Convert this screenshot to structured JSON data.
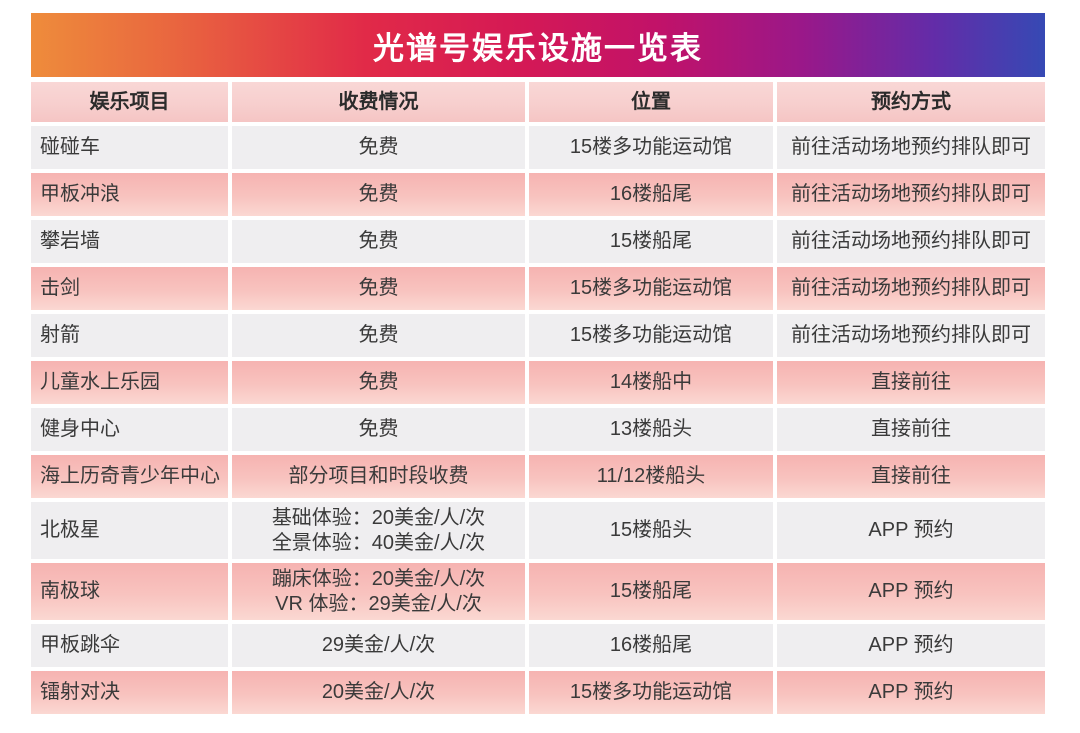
{
  "title": {
    "text": "光谱号娱乐设施一览表",
    "text_color": "#ffffff",
    "gradient": [
      "#EE8C3B",
      "#E12A48",
      "#C11269",
      "#3649B4"
    ]
  },
  "colors": {
    "header_cell_pink": "#f7cfce",
    "row_pink_top": "#f6b3b1",
    "row_pink_bottom": "#fbd8d2",
    "row_gray": "#efeef0",
    "body_text": "#3a3a3a",
    "page_background": "#ffffff"
  },
  "chart_data": {
    "type": "table",
    "title": "光谱号娱乐设施一览表",
    "columns": [
      "娱乐项目",
      "收费情况",
      "位置",
      "预约方式"
    ],
    "rows": [
      [
        "碰碰车",
        "免费",
        "15楼多功能运动馆",
        "前往活动场地预约排队即可"
      ],
      [
        "甲板冲浪",
        "免费",
        "16楼船尾",
        "前往活动场地预约排队即可"
      ],
      [
        "攀岩墙",
        "免费",
        "15楼船尾",
        "前往活动场地预约排队即可"
      ],
      [
        "击剑",
        "免费",
        "15楼多功能运动馆",
        "前往活动场地预约排队即可"
      ],
      [
        "射箭",
        "免费",
        "15楼多功能运动馆",
        "前往活动场地预约排队即可"
      ],
      [
        "儿童水上乐园",
        "免费",
        "14楼船中",
        "直接前往"
      ],
      [
        "健身中心",
        "免费",
        "13楼船头",
        "直接前往"
      ],
      [
        "海上历奇青少年中心",
        "部分项目和时段收费",
        "11/12楼船头",
        "直接前往"
      ],
      [
        "北极星",
        "基础体验：20美金/人/次\n全景体验：40美金/人/次",
        "15楼船头",
        "APP 预约"
      ],
      [
        "南极球",
        "蹦床体验：20美金/人/次\nVR 体验：29美金/人/次",
        "15楼船尾",
        "APP 预约"
      ],
      [
        "甲板跳伞",
        "29美金/人/次",
        "16楼船尾",
        "APP 预约"
      ],
      [
        "镭射对决",
        "20美金/人/次",
        "15楼多功能运动馆",
        "APP 预约"
      ]
    ]
  }
}
